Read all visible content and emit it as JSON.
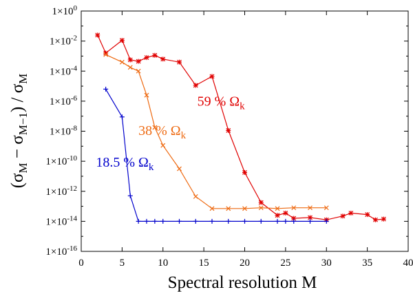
{
  "chart_data": {
    "type": "line",
    "title": "",
    "xlabel": "Spectral resolution  M",
    "ylabel": "(σM − σM−1) / σM",
    "ylabel_parts": {
      "open": "(σ",
      "sub1": "M",
      "minus": " − σ",
      "sub2": "M−1",
      "close": ") / σ",
      "sub3": "M"
    },
    "xlim": [
      0,
      40
    ],
    "ylim_log10": [
      -16,
      0
    ],
    "y_scale": "log",
    "grid": false,
    "x_ticks": [
      0,
      5,
      10,
      15,
      20,
      25,
      30,
      35,
      40
    ],
    "x_tick_labels": [
      "0",
      "5",
      "10",
      "15",
      "20",
      "25",
      "30",
      "35",
      "40"
    ],
    "y_ticks_log10": [
      0,
      -2,
      -4,
      -6,
      -8,
      -10,
      -12,
      -14,
      -16
    ],
    "y_tick_labels": [
      {
        "base": "1×10",
        "exp": "0"
      },
      {
        "base": "1×10",
        "exp": "-2"
      },
      {
        "base": "1×10",
        "exp": "-4"
      },
      {
        "base": "1×10",
        "exp": "-6"
      },
      {
        "base": "1×10",
        "exp": "-8"
      },
      {
        "base": "1×10",
        "exp": "-10"
      },
      {
        "base": "1×10",
        "exp": "-12"
      },
      {
        "base": "1×10",
        "exp": "-14"
      },
      {
        "base": "1×10",
        "exp": "-16"
      }
    ],
    "series": [
      {
        "name": "59 % Ωk",
        "label_main": "59 % Ω",
        "label_sub": "k",
        "color": "#e00000",
        "marker": "star",
        "label_pos_data": [
          14.2,
          -6.3
        ],
        "x": [
          2,
          3,
          5,
          6,
          7,
          8,
          9,
          10,
          12,
          14,
          16,
          18,
          20,
          22,
          24,
          25,
          26,
          28,
          30,
          32,
          33,
          35,
          36,
          37
        ],
        "log10_y": [
          -1.6,
          -2.8,
          -1.95,
          -3.25,
          -3.35,
          -3.1,
          -2.95,
          -3.2,
          -3.4,
          -4.95,
          -4.35,
          -7.95,
          -10.75,
          -12.75,
          -13.6,
          -13.45,
          -13.8,
          -13.75,
          -13.9,
          -13.65,
          -13.45,
          -13.55,
          -13.9,
          -13.85
        ]
      },
      {
        "name": "38 % Ωk",
        "label_main": "38 % Ω",
        "label_sub": "k",
        "color": "#ee6a12",
        "marker": "x",
        "label_pos_data": [
          7.0,
          -8.25
        ],
        "x": [
          3,
          5,
          6,
          7,
          8,
          9,
          10,
          12,
          14,
          16,
          18,
          20,
          22,
          24,
          26,
          28,
          30
        ],
        "log10_y": [
          -2.9,
          -3.4,
          -3.75,
          -4.0,
          -5.6,
          -7.75,
          -8.95,
          -10.5,
          -12.35,
          -13.15,
          -13.15,
          -13.15,
          -13.1,
          -13.15,
          -13.1,
          -13.1,
          -13.1
        ]
      },
      {
        "name": "18.5 % Ωk",
        "label_main": "18.5 % Ω",
        "label_sub": "k",
        "color": "#0000cc",
        "marker": "plus",
        "label_pos_data": [
          1.8,
          -10.35
        ],
        "x": [
          3,
          5,
          6,
          7,
          8,
          9,
          10,
          12,
          14,
          16,
          18,
          20,
          22,
          24,
          25,
          26,
          28,
          30
        ],
        "log10_y": [
          -5.2,
          -7.05,
          -12.3,
          -14.0,
          -14.0,
          -14.0,
          -14.0,
          -14.0,
          -14.0,
          -14.0,
          -14.0,
          -14.0,
          -14.0,
          -14.0,
          -14.0,
          -14.0,
          -14.0,
          -14.0
        ]
      }
    ]
  }
}
